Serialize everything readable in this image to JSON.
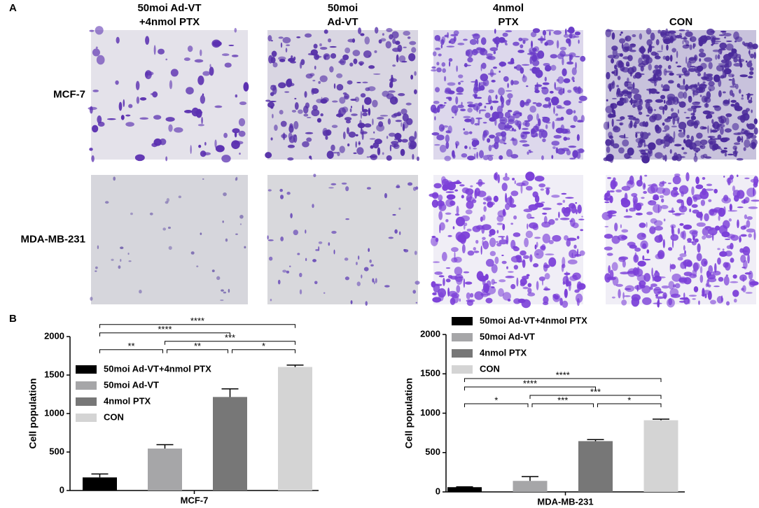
{
  "panel_a": {
    "label": "A",
    "columns": [
      [
        "50moi Ad-VT",
        "+4nmol PTX"
      ],
      [
        "50moi",
        "Ad-VT"
      ],
      [
        "4nmol",
        "PTX"
      ],
      [
        "CON"
      ]
    ],
    "rows": [
      "MCF-7",
      "MDA-MB-231"
    ]
  },
  "panel_b": {
    "label": "B"
  },
  "chart_data": [
    {
      "type": "bar",
      "xlabel": "MCF-7",
      "ylabel": "Cell population",
      "ylim": [
        0,
        2000
      ],
      "yticks": [
        0,
        500,
        1000,
        1500,
        2000
      ],
      "series": [
        {
          "name": "50moi Ad-VT+4nmol PTX",
          "color": "#000000",
          "values": [
            170
          ],
          "errors": [
            45
          ]
        },
        {
          "name": "50moi Ad-VT",
          "color": "#a6a6a8",
          "values": [
            545
          ],
          "errors": [
            50
          ]
        },
        {
          "name": "4nmol PTX",
          "color": "#777777",
          "values": [
            1215
          ],
          "errors": [
            105
          ]
        },
        {
          "name": "CON",
          "color": "#d4d4d4",
          "values": [
            1605
          ],
          "errors": [
            25
          ]
        }
      ],
      "significance": [
        {
          "from": 0,
          "to": 1,
          "label": "**"
        },
        {
          "from": 1,
          "to": 2,
          "label": "**"
        },
        {
          "from": 2,
          "to": 3,
          "label": "*"
        },
        {
          "from": 1,
          "to": 3,
          "label": "***"
        },
        {
          "from": 0,
          "to": 2,
          "label": "****"
        },
        {
          "from": 0,
          "to": 3,
          "label": "****"
        }
      ]
    },
    {
      "type": "bar",
      "xlabel": "MDA-MB-231",
      "ylabel": "Cell population",
      "ylim": [
        0,
        2000
      ],
      "yticks": [
        0,
        500,
        1000,
        1500,
        2000
      ],
      "series": [
        {
          "name": "50moi Ad-VT+4nmol PTX",
          "color": "#000000",
          "values": [
            60
          ],
          "errors": [
            5
          ]
        },
        {
          "name": "50moi Ad-VT",
          "color": "#a6a6a8",
          "values": [
            140
          ],
          "errors": [
            55
          ]
        },
        {
          "name": "4nmol PTX",
          "color": "#777777",
          "values": [
            645
          ],
          "errors": [
            20
          ]
        },
        {
          "name": "CON",
          "color": "#d4d4d4",
          "values": [
            910
          ],
          "errors": [
            15
          ]
        }
      ],
      "significance": [
        {
          "from": 0,
          "to": 1,
          "label": "*"
        },
        {
          "from": 1,
          "to": 2,
          "label": "***"
        },
        {
          "from": 2,
          "to": 3,
          "label": "*"
        },
        {
          "from": 1,
          "to": 3,
          "label": "***"
        },
        {
          "from": 0,
          "to": 2,
          "label": "****"
        },
        {
          "from": 0,
          "to": 3,
          "label": "****"
        }
      ]
    }
  ]
}
